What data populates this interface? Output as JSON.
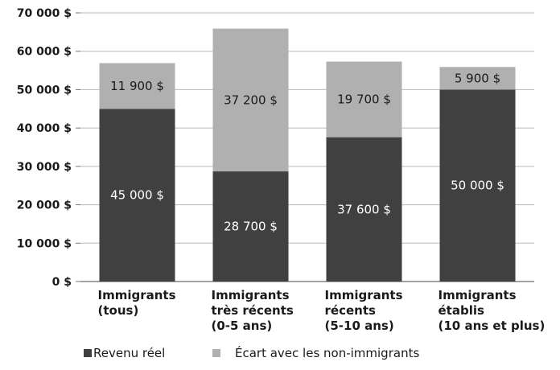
{
  "chart_data": {
    "type": "bar",
    "stacked": true,
    "categories": [
      [
        "Immigrants",
        "(tous)"
      ],
      [
        "Immigrants",
        "très récents",
        "(0-5 ans)"
      ],
      [
        "Immigrants",
        "récents",
        "(5-10 ans)"
      ],
      [
        "Immigrants",
        "établis",
        "(10 ans et plus)"
      ]
    ],
    "series": [
      {
        "name": "Revenu réel",
        "color": "#404040",
        "values": [
          45000,
          28700,
          37600,
          50000
        ],
        "labels": [
          "45 000 $",
          "28 700 $",
          "37 600 $",
          "50 000 $"
        ],
        "label_color": "#ffffff"
      },
      {
        "name": "Écart avec les non-immigrants",
        "color": "#b0b0b0",
        "values": [
          11900,
          37200,
          19700,
          5900
        ],
        "labels": [
          "11 900 $",
          "37 200 $",
          "19 700 $",
          "5 900 $"
        ],
        "label_color": "#1a1a1a"
      }
    ],
    "ylim": [
      0,
      70000
    ],
    "yticks": [
      0,
      10000,
      20000,
      30000,
      40000,
      50000,
      60000,
      70000
    ],
    "ytick_labels": [
      "0 $",
      "10 000 $",
      "20 000 $",
      "30 000 $",
      "40 000 $",
      "50 000 $",
      "60 000 $",
      "70 000 $"
    ],
    "grid": true,
    "legend_position": "bottom-left"
  }
}
